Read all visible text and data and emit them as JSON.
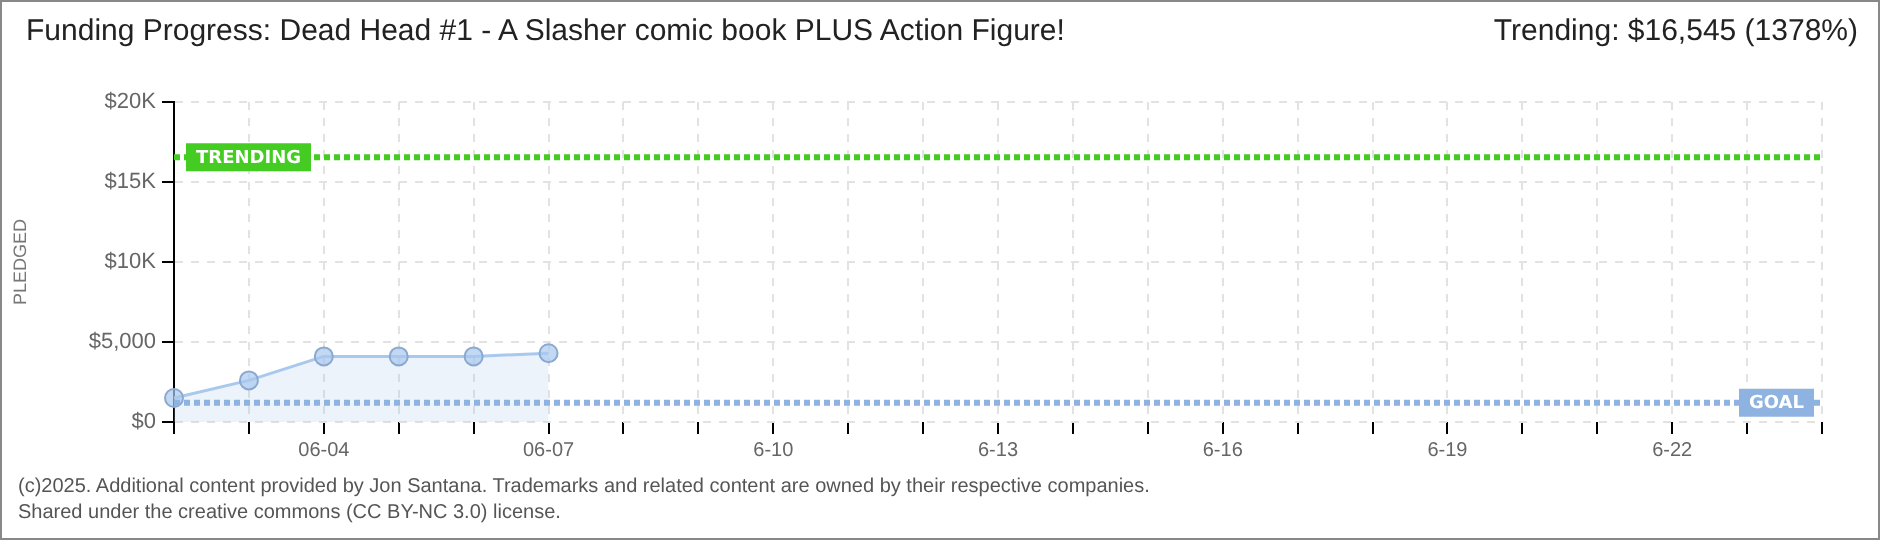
{
  "chart_data": {
    "type": "area",
    "title": "Funding Progress: Dead Head #1 - A Slasher comic book PLUS Action Figure!",
    "ylabel": "PLEDGED",
    "categories": [
      null,
      null,
      "06-04",
      null,
      null,
      "06-07",
      null,
      null,
      "6-10",
      null,
      null,
      "6-13",
      null,
      null,
      "6-16",
      null,
      null,
      "6-19",
      null,
      null,
      "6-22",
      null,
      null
    ],
    "series": [
      {
        "color": "#a9c8ee",
        "values": [
          1500,
          2600,
          4100,
          4100,
          4100,
          4300,
          null,
          null,
          null,
          null,
          null,
          null,
          null,
          null,
          null,
          null,
          null,
          null,
          null,
          null,
          null,
          null,
          null
        ]
      }
    ],
    "ylim": [
      0,
      20000
    ],
    "yticks": [
      {
        "value": 0,
        "label": "$0"
      },
      {
        "value": 5000,
        "label": "$5,000"
      },
      {
        "value": 10000,
        "label": "$10K"
      },
      {
        "value": 15000,
        "label": "$15K"
      },
      {
        "value": 20000,
        "label": "$20K"
      }
    ],
    "grid": true,
    "marker": "circle",
    "ref_lines": [
      {
        "axis": "y",
        "value": 16545,
        "label": "TRENDING",
        "color": "#44cc22",
        "line_style": "dotted"
      },
      {
        "axis": "y",
        "value": 1200,
        "label": "GOAL",
        "color": "#8fb3e0",
        "line_style": "dotted"
      }
    ],
    "annotations": [
      "Trending: $16,545 (1378%)",
      "(c)2025. Additional content provided by Jon Santana. Trademarks and related content are owned by their respective companies.",
      "Shared under the creative commons (CC BY-NC 3.0) license."
    ]
  }
}
